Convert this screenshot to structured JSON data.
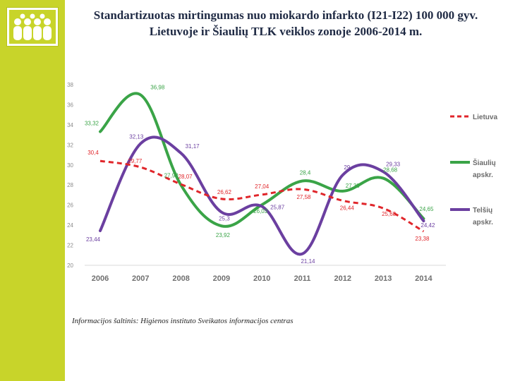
{
  "title": {
    "line1": "Standartizuotas mirtingumas nuo miokardo infarkto   (I21-I22) 100 000 gyv.",
    "line2": "Lietuvoje ir Šiaulių TLK veiklos zonoje 2006-2014 m."
  },
  "source": "Informacijos šaltinis: Higienos instituto Sveikatos informacijos centras",
  "colors": {
    "sidebar": "#c8d42a",
    "lietuva": "#e0262b",
    "siauliu": "#3aa447",
    "telsiu": "#6b3fa0"
  },
  "chart_data": {
    "type": "line",
    "title": "",
    "xlabel": "",
    "ylabel": "",
    "x": [
      "2006",
      "2007",
      "2008",
      "2009",
      "2010",
      "2011",
      "2012",
      "2013",
      "2014"
    ],
    "ylim": [
      20,
      38
    ],
    "yticks": [
      "20",
      "22",
      "24",
      "26",
      "28",
      "30",
      "32",
      "34",
      "36",
      "38"
    ],
    "grid": false,
    "legend_position": "right",
    "series": [
      {
        "name": "Lietuva",
        "color_key": "lietuva",
        "dashed": true,
        "values": [
          30.4,
          29.77,
          28.07,
          26.62,
          27.04,
          27.58,
          26.44,
          25.68,
          23.38
        ],
        "labels": [
          "30,4",
          "29,77",
          "28,07",
          "26,62",
          "27,04",
          "27,58",
          "26,44",
          "25,68",
          "23,38"
        ],
        "legend_lines": [
          "Lietuva"
        ]
      },
      {
        "name": "Šiaulių apskr.",
        "color_key": "siauliu",
        "dashed": false,
        "values": [
          33.32,
          36.98,
          27.98,
          23.92,
          26.03,
          28.4,
          27.39,
          28.68,
          24.65
        ],
        "labels": [
          "33,32",
          "36,98",
          "27,98",
          "23,92",
          "26,03",
          "28,4",
          "27,39",
          "28,68",
          "24,65"
        ],
        "legend_lines": [
          "Šiaulių",
          "apskr."
        ]
      },
      {
        "name": "Telšių apskr.",
        "color_key": "telsiu",
        "dashed": false,
        "values": [
          23.44,
          32.13,
          31.17,
          25.3,
          25.87,
          21.14,
          29,
          29.33,
          24.42
        ],
        "labels": [
          "23,44",
          "32,13",
          "31,17",
          "25,3",
          "25,87",
          "21,14",
          "29",
          "29,33",
          "24,42"
        ],
        "legend_lines": [
          "Telšių",
          "apskr."
        ]
      }
    ]
  }
}
